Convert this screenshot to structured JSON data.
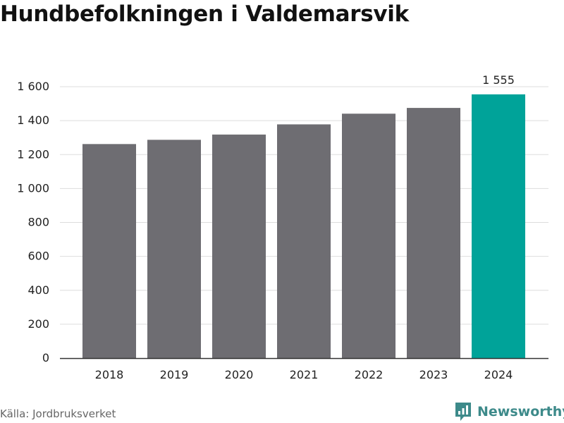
{
  "title": "Hundbefolkningen i Valdemarsvik",
  "source": "Källa: Jordbruksverket",
  "brand": {
    "name": "Newsworthy",
    "icon": "newsworthy-logo-icon"
  },
  "colors": {
    "bar": "#6e6d72",
    "highlight": "#00a399",
    "grid": "#dddddd",
    "axis": "#333333",
    "brand": "#3d8a8a"
  },
  "chart_data": {
    "type": "bar",
    "categories": [
      "2018",
      "2019",
      "2020",
      "2021",
      "2022",
      "2023",
      "2024"
    ],
    "values": [
      1262,
      1287,
      1318,
      1378,
      1441,
      1475,
      1555
    ],
    "highlight_index": 6,
    "data_labels": [
      {
        "index": 6,
        "text": "1 555"
      }
    ],
    "ylim": [
      0,
      1600
    ],
    "yticks": [
      0,
      200,
      400,
      600,
      800,
      1000,
      1200,
      1400,
      1600
    ],
    "ytick_labels": [
      "0",
      "200",
      "400",
      "600",
      "800",
      "1 000",
      "1 200",
      "1 400",
      "1 600"
    ],
    "grid": true,
    "xlabel": "",
    "ylabel": ""
  }
}
